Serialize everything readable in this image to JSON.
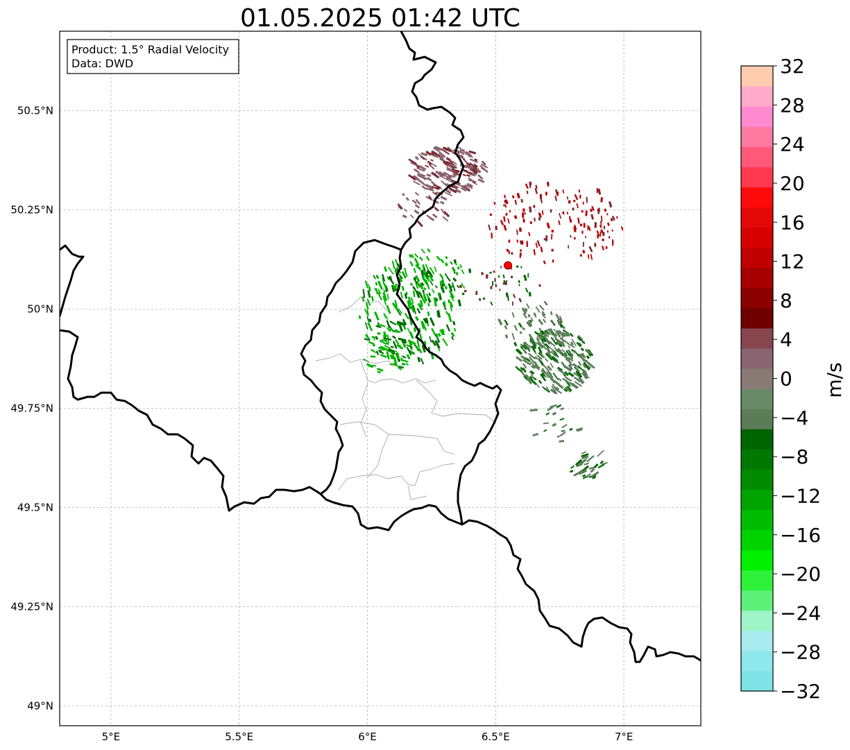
{
  "title": "01.05.2025 01:42 UTC",
  "info_box": {
    "product": "Product: 1.5° Radial Velocity",
    "data": "Data: DWD"
  },
  "map": {
    "lon_range": [
      4.8,
      7.3
    ],
    "lat_range": [
      48.95,
      50.7
    ],
    "x_ticks": [
      {
        "value": 5.0,
        "label": "5°E"
      },
      {
        "value": 5.5,
        "label": "5.5°E"
      },
      {
        "value": 6.0,
        "label": "6°E"
      },
      {
        "value": 6.5,
        "label": "6.5°E"
      },
      {
        "value": 7.0,
        "label": "7°E"
      }
    ],
    "y_ticks": [
      {
        "value": 49.0,
        "label": "49°N"
      },
      {
        "value": 49.25,
        "label": "49.25°N"
      },
      {
        "value": 49.5,
        "label": "49.5°N"
      },
      {
        "value": 49.75,
        "label": "49.75°N"
      },
      {
        "value": 50.0,
        "label": "50°N"
      },
      {
        "value": 50.25,
        "label": "50.25°N"
      },
      {
        "value": 50.5,
        "label": "50.5°N"
      }
    ],
    "grid": true,
    "radar_site": {
      "lon": 6.548,
      "lat": 50.11,
      "color": "#ff0000"
    }
  },
  "colorbar": {
    "label": "m/s",
    "min": -32,
    "max": 32,
    "tick_labels": [
      "32",
      "28",
      "24",
      "20",
      "16",
      "12",
      "8",
      "4",
      "0",
      "−4",
      "−8",
      "−12",
      "−16",
      "−20",
      "−24",
      "−28",
      "−32"
    ],
    "colors": [
      "#7fe3e8",
      "#8de8ec",
      "#a8ecef",
      "#9ff4c8",
      "#5ff07a",
      "#2ef23a",
      "#00f000",
      "#00d400",
      "#00bc00",
      "#00a400",
      "#008c00",
      "#007800",
      "#006400",
      "#5a7d58",
      "#6a8a68",
      "#8a7a76",
      "#8a6470",
      "#86464e",
      "#6e0000",
      "#8a0000",
      "#a60000",
      "#c00000",
      "#d60000",
      "#e40808",
      "#ff0a0a",
      "#ff3a50",
      "#ff5a7a",
      "#ff7aa0",
      "#ff8ad0",
      "#ffaac8",
      "#ffccb0"
    ]
  },
  "echo_colors": {
    "inbound_strong": "#00b400",
    "inbound_dark": "#006a00",
    "inbound_gray": "#5d7d5a",
    "outbound_gray": "#8a6470",
    "outbound_dark": "#7a2a30",
    "outbound_red": "#b40000"
  }
}
